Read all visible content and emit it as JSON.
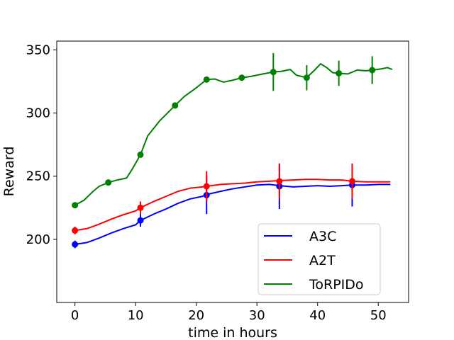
{
  "chart_data": {
    "type": "line",
    "title": "",
    "xlabel": "time in hours",
    "ylabel": "Reward",
    "xlim": [
      -3,
      55
    ],
    "ylim": [
      150,
      357
    ],
    "xticks": [
      0,
      10,
      20,
      30,
      40,
      50
    ],
    "yticks": [
      200,
      250,
      300,
      350
    ],
    "grid": false,
    "legend_position": "lower-right",
    "series": [
      {
        "name": "A3C",
        "color": "#0000ff",
        "x": [
          0,
          2,
          4,
          6,
          8,
          10,
          10.8,
          13,
          15,
          17,
          19,
          21,
          21.7,
          24,
          26,
          28,
          30,
          32,
          33.7,
          36,
          38,
          40,
          42,
          44,
          45.7,
          48,
          50,
          52
        ],
        "y": [
          196,
          197.5,
          201,
          205,
          208.5,
          211.5,
          215,
          220,
          224,
          228.5,
          232,
          234,
          235.5,
          238,
          240,
          241.5,
          243,
          243.5,
          242.5,
          241.5,
          242,
          242.5,
          242,
          242.5,
          243,
          243,
          243.5,
          243.5
        ],
        "markers": [
          {
            "x": 0,
            "y": 196,
            "err": 3
          },
          {
            "x": 10.8,
            "y": 215,
            "err": 5
          },
          {
            "x": 21.7,
            "y": 235,
            "err": 15
          },
          {
            "x": 33.7,
            "y": 242,
            "err": 18
          },
          {
            "x": 45.7,
            "y": 243,
            "err": 17
          }
        ]
      },
      {
        "name": "A2T",
        "color": "#ff0000",
        "x": [
          0,
          2,
          4,
          6,
          8,
          10,
          10.8,
          13,
          15,
          17,
          19,
          21,
          21.7,
          24,
          26,
          28,
          30,
          32,
          33.7,
          36,
          38,
          40,
          42,
          44,
          45.7,
          48,
          50,
          52
        ],
        "y": [
          207,
          208.5,
          212,
          216,
          219.5,
          222.5,
          225,
          230,
          234,
          238,
          240.5,
          241.5,
          242,
          243.5,
          244,
          244.5,
          245.5,
          246,
          246.5,
          247,
          247.5,
          247.5,
          247,
          247,
          246,
          245.5,
          245.5,
          245.5
        ],
        "markers": [
          {
            "x": 0,
            "y": 207,
            "err": 3
          },
          {
            "x": 10.8,
            "y": 225,
            "err": 5
          },
          {
            "x": 21.7,
            "y": 242,
            "err": 12
          },
          {
            "x": 33.7,
            "y": 246,
            "err": 14
          },
          {
            "x": 45.7,
            "y": 246,
            "err": 14
          }
        ]
      },
      {
        "name": "ToRPIDo",
        "color": "#008000",
        "x": [
          0,
          1.5,
          3,
          4,
          5.5,
          7,
          8.5,
          9.5,
          10.8,
          12,
          14,
          16.5,
          18,
          20,
          21.7,
          23,
          24.5,
          26,
          27.5,
          29,
          31,
          32.7,
          34,
          35.5,
          36.5,
          38.2,
          39.5,
          40.5,
          41.5,
          42.5,
          43.5,
          45,
          46.5,
          48,
          49,
          50.5,
          51.5,
          52.3
        ],
        "y": [
          227,
          231,
          238,
          242,
          245,
          247,
          248.5,
          256,
          267,
          282,
          294,
          306,
          313,
          320,
          326.5,
          327,
          324.5,
          326,
          328,
          329,
          331,
          332.5,
          333,
          334.5,
          330,
          328,
          334,
          339,
          336,
          332,
          331.5,
          331,
          334,
          333.5,
          334,
          335,
          336,
          334.5
        ],
        "markers": [
          {
            "x": 0,
            "y": 227,
            "err": 0
          },
          {
            "x": 5.5,
            "y": 245,
            "err": 0
          },
          {
            "x": 10.8,
            "y": 267,
            "err": 0
          },
          {
            "x": 16.5,
            "y": 306,
            "err": 0
          },
          {
            "x": 21.7,
            "y": 326.5,
            "err": 0
          },
          {
            "x": 27.5,
            "y": 328,
            "err": 0
          },
          {
            "x": 32.7,
            "y": 332.5,
            "err": 15
          },
          {
            "x": 38.2,
            "y": 328,
            "err": 10
          },
          {
            "x": 43.5,
            "y": 331.5,
            "err": 10
          },
          {
            "x": 49,
            "y": 334,
            "err": 11
          }
        ]
      }
    ]
  }
}
